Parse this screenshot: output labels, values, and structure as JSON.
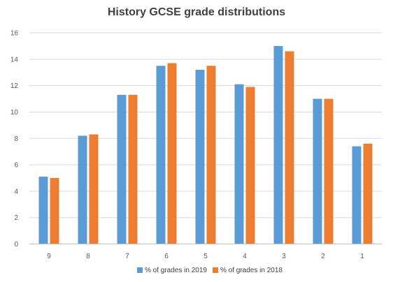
{
  "chart_data": {
    "type": "bar",
    "title": "History GCSE grade distributions",
    "xlabel": "",
    "ylabel": "",
    "categories": [
      "9",
      "8",
      "7",
      "6",
      "5",
      "4",
      "3",
      "2",
      "1"
    ],
    "series": [
      {
        "name": "% of grades in 2019",
        "color": "#5b9bd5",
        "values": [
          5.1,
          8.2,
          11.3,
          13.5,
          13.2,
          12.1,
          15.0,
          11.0,
          7.4
        ]
      },
      {
        "name": "% of grades in 2018",
        "color": "#ed7d31",
        "values": [
          5.0,
          8.3,
          11.3,
          13.7,
          13.5,
          11.9,
          14.6,
          11.0,
          7.6
        ]
      }
    ],
    "ylim": [
      0,
      16
    ],
    "yticks": [
      "0",
      "2",
      "4",
      "6",
      "8",
      "10",
      "12",
      "14",
      "16"
    ],
    "grid": true,
    "legend_position": "bottom"
  }
}
